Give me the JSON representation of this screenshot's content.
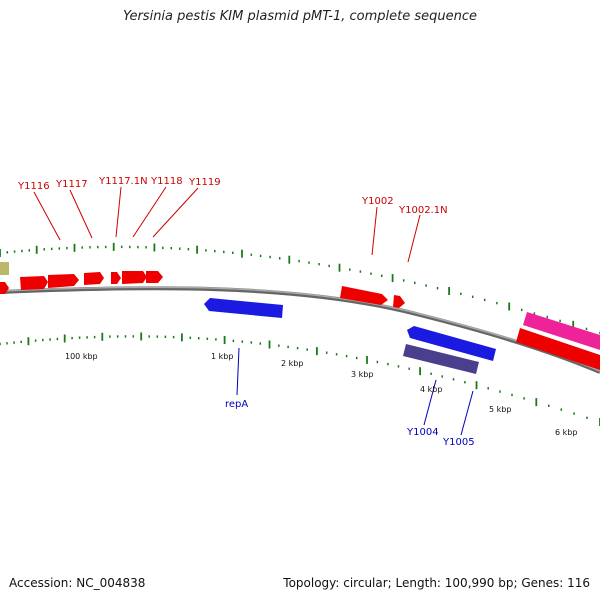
{
  "title": "Yersinia pestis KIM plasmid pMT-1, complete sequence",
  "footer": {
    "accession": "Accession: NC_004838",
    "summary": "Topology: circular; Length: 100,990 bp; Genes: 116"
  },
  "colors": {
    "forward_gene": "#ee0000",
    "reverse_gene": "#1a1ae0",
    "reverse_gene_dark": "#4a3f8c",
    "magenta_gene": "#ee2299",
    "olive_gene": "#bdb76b",
    "tick": "#1a7a1a",
    "forward_label": "#cc0000",
    "reverse_label": "#0000bb",
    "backbone": "#888888"
  },
  "scale_labels": [
    "100 kbp",
    "1 kbp",
    "2 kbp",
    "3 kbp",
    "4 kbp",
    "5 kbp",
    "6 kbp"
  ],
  "forward_labels": [
    "Y1116",
    "Y1117",
    "Y1117.1N",
    "Y1118",
    "Y1119",
    "Y1002",
    "Y1002.1N"
  ],
  "reverse_labels": [
    "repA",
    "Y1004",
    "Y1005"
  ]
}
